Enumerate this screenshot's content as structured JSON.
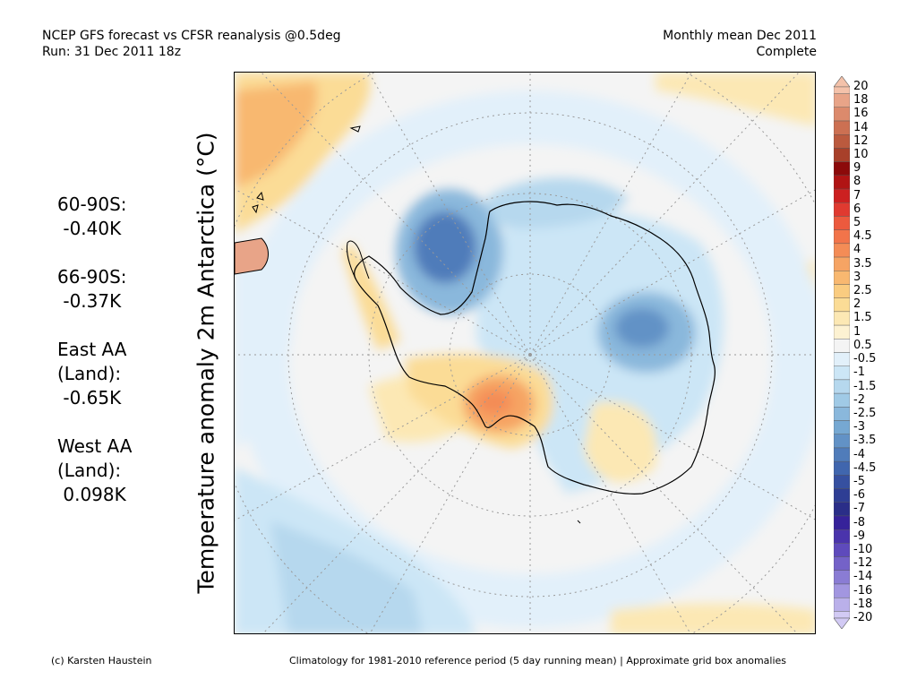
{
  "header": {
    "title_line1": "NCEP GFS forecast vs CFSR reanalysis @0.5deg",
    "title_line2": "Run: 31 Dec 2011 18z",
    "period_line1": "Monthly mean Dec 2011",
    "period_line2": "Complete"
  },
  "y_label": "Temperature anomaly 2m Antarctica (°C)",
  "stats": [
    {
      "label": "60-90S:",
      "value": "-0.40K"
    },
    {
      "label": "66-90S:",
      "value": "-0.37K"
    },
    {
      "label": "East AA\n(Land):",
      "value": "-0.65K"
    },
    {
      "label": "West AA\n(Land):",
      "value": "0.098K"
    }
  ],
  "colorbar": {
    "labels": [
      "20",
      "18",
      "16",
      "14",
      "12",
      "10",
      "9",
      "8",
      "7",
      "6",
      "5",
      "4.5",
      "4",
      "3.5",
      "3",
      "2.5",
      "2",
      "1.5",
      "1",
      "0.5",
      "-0.5",
      "-1",
      "-1.5",
      "-2",
      "-2.5",
      "-3",
      "-3.5",
      "-4",
      "-4.5",
      "-5",
      "-6",
      "-7",
      "-8",
      "-9",
      "-10",
      "-12",
      "-14",
      "-16",
      "-18",
      "-20"
    ],
    "colors": [
      "#f4c2aa",
      "#e8a488",
      "#dc8a6c",
      "#cc7052",
      "#bb5a3e",
      "#a8402a",
      "#8c0a0a",
      "#b01414",
      "#cc2020",
      "#e03a30",
      "#ec5a3e",
      "#f2744a",
      "#f48c56",
      "#f6a464",
      "#f8b870",
      "#facc80",
      "#fbdc96",
      "#fce8b4",
      "#fdf2d2",
      "#f4f4f4",
      "#e2f0fa",
      "#cce6f6",
      "#b6d8ee",
      "#a0cae6",
      "#8ab8dc",
      "#76a8d2",
      "#6292c6",
      "#507cba",
      "#4066ae",
      "#3650a0",
      "#2e3e94",
      "#2a2e88",
      "#36229a",
      "#4a34ac",
      "#5e4abc",
      "#7462c8",
      "#8a7cd4",
      "#a296e0",
      "#bab0ea",
      "#d2caf4"
    ]
  },
  "footer": {
    "credit": "(c) Karsten Haustein",
    "note": "Climatology for 1981-2010 reference period (5 day running mean) | Approximate grid box anomalies"
  }
}
